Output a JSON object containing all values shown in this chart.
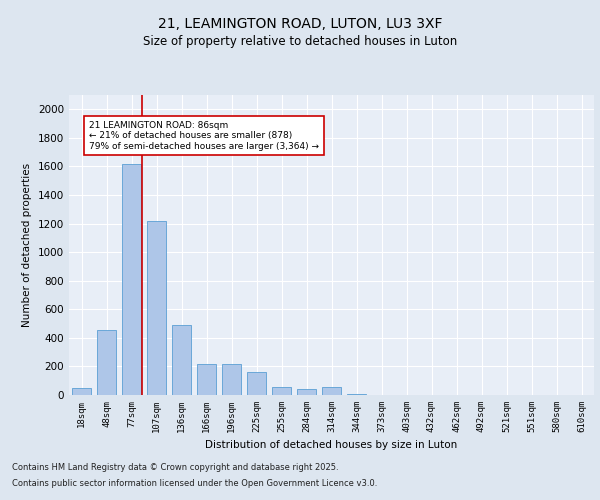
{
  "title1": "21, LEAMINGTON ROAD, LUTON, LU3 3XF",
  "title2": "Size of property relative to detached houses in Luton",
  "xlabel": "Distribution of detached houses by size in Luton",
  "ylabel": "Number of detached properties",
  "categories": [
    "18sqm",
    "48sqm",
    "77sqm",
    "107sqm",
    "136sqm",
    "166sqm",
    "196sqm",
    "225sqm",
    "255sqm",
    "284sqm",
    "314sqm",
    "344sqm",
    "373sqm",
    "403sqm",
    "432sqm",
    "462sqm",
    "492sqm",
    "521sqm",
    "551sqm",
    "580sqm",
    "610sqm"
  ],
  "values": [
    50,
    455,
    1620,
    1220,
    490,
    215,
    215,
    160,
    55,
    45,
    55,
    10,
    0,
    0,
    0,
    0,
    0,
    0,
    0,
    0,
    0
  ],
  "bar_color": "#aec6e8",
  "bar_edge_color": "#5a9fd4",
  "vline_color": "#cc0000",
  "annotation_text": "21 LEAMINGTON ROAD: 86sqm\n← 21% of detached houses are smaller (878)\n79% of semi-detached houses are larger (3,364) →",
  "annotation_box_color": "#ffffff",
  "annotation_box_edge": "#cc0000",
  "ylim": [
    0,
    2100
  ],
  "yticks": [
    0,
    200,
    400,
    600,
    800,
    1000,
    1200,
    1400,
    1600,
    1800,
    2000
  ],
  "background_color": "#dde6f0",
  "plot_bg_color": "#e8eef7",
  "footer1": "Contains HM Land Registry data © Crown copyright and database right 2025.",
  "footer2": "Contains public sector information licensed under the Open Government Licence v3.0."
}
